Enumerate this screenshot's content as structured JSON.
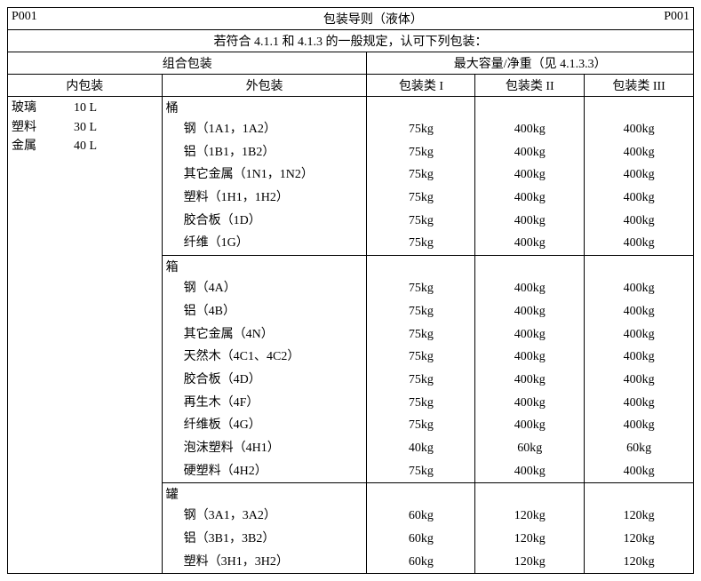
{
  "header": {
    "code_left": "P001",
    "title": "包装导则（液体）",
    "code_right": "P001",
    "subtitle": "若符合 4.1.1 和 4.1.3 的一般规定，认可下列包装："
  },
  "group_headers": {
    "combo": "组合包装",
    "maxcap": "最大容量/净重（见 4.1.3.3）"
  },
  "col_headers": {
    "inner": "内包装",
    "outer": "外包装",
    "cls1": "包装类 I",
    "cls2": "包装类 II",
    "cls3": "包装类 III"
  },
  "inner_pkg": {
    "rows": [
      {
        "mat": "玻璃",
        "cap": "10 L"
      },
      {
        "mat": "塑料",
        "cap": "30 L"
      },
      {
        "mat": "金属",
        "cap": "40 L"
      }
    ]
  },
  "sections": [
    {
      "label": "桶",
      "rows": [
        {
          "name": "钢（1A1，1A2）",
          "c1": "75kg",
          "c2": "400kg",
          "c3": "400kg"
        },
        {
          "name": "铝（1B1，1B2）",
          "c1": "75kg",
          "c2": "400kg",
          "c3": "400kg"
        },
        {
          "name": "其它金属（1N1，1N2）",
          "c1": "75kg",
          "c2": "400kg",
          "c3": "400kg"
        },
        {
          "name": "塑料（1H1，1H2）",
          "c1": "75kg",
          "c2": "400kg",
          "c3": "400kg"
        },
        {
          "name": "胶合板（1D）",
          "c1": "75kg",
          "c2": "400kg",
          "c3": "400kg"
        },
        {
          "name": "纤维（1G）",
          "c1": "75kg",
          "c2": "400kg",
          "c3": "400kg"
        }
      ]
    },
    {
      "label": "箱",
      "rows": [
        {
          "name": "钢（4A）",
          "c1": "75kg",
          "c2": "400kg",
          "c3": "400kg"
        },
        {
          "name": "铝（4B）",
          "c1": "75kg",
          "c2": "400kg",
          "c3": "400kg"
        },
        {
          "name": "其它金属（4N）",
          "c1": "75kg",
          "c2": "400kg",
          "c3": "400kg"
        },
        {
          "name": "天然木（4C1、4C2）",
          "c1": "75kg",
          "c2": "400kg",
          "c3": "400kg"
        },
        {
          "name": "胶合板（4D）",
          "c1": "75kg",
          "c2": "400kg",
          "c3": "400kg"
        },
        {
          "name": "再生木（4F）",
          "c1": "75kg",
          "c2": "400kg",
          "c3": "400kg"
        },
        {
          "name": "纤维板（4G）",
          "c1": "75kg",
          "c2": "400kg",
          "c3": "400kg"
        },
        {
          "name": "泡沫塑料（4H1）",
          "c1": "40kg",
          "c2": "60kg",
          "c3": "60kg"
        },
        {
          "name": "硬塑料（4H2）",
          "c1": "75kg",
          "c2": "400kg",
          "c3": "400kg"
        }
      ]
    },
    {
      "label": "罐",
      "rows": [
        {
          "name": "钢（3A1，3A2）",
          "c1": "60kg",
          "c2": "120kg",
          "c3": "120kg"
        },
        {
          "name": "铝（3B1，3B2）",
          "c1": "60kg",
          "c2": "120kg",
          "c3": "120kg"
        },
        {
          "name": "塑料（3H1，3H2）",
          "c1": "60kg",
          "c2": "120kg",
          "c3": "120kg"
        }
      ]
    }
  ]
}
